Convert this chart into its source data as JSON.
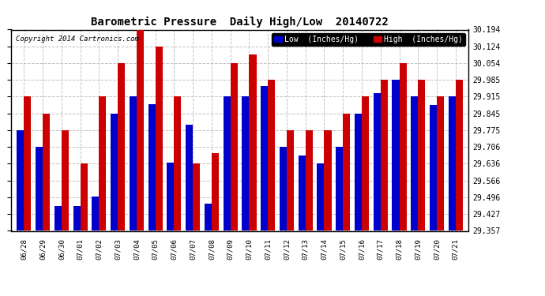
{
  "title": "Barometric Pressure  Daily High/Low  20140722",
  "copyright": "Copyright 2014 Cartronics.com",
  "ylabel_low": "Low  (Inches/Hg)",
  "ylabel_high": "High  (Inches/Hg)",
  "background_color": "#ffffff",
  "plot_bg_color": "#ffffff",
  "grid_color": "#bbbbbb",
  "low_color": "#0000cc",
  "high_color": "#cc0000",
  "dates": [
    "06/28",
    "06/29",
    "06/30",
    "07/01",
    "07/02",
    "07/03",
    "07/04",
    "07/05",
    "07/06",
    "07/07",
    "07/08",
    "07/09",
    "07/10",
    "07/11",
    "07/12",
    "07/13",
    "07/14",
    "07/15",
    "07/16",
    "07/17",
    "07/18",
    "07/19",
    "07/20",
    "07/21"
  ],
  "lows": [
    29.775,
    29.706,
    29.46,
    29.46,
    29.5,
    29.846,
    29.916,
    29.883,
    29.64,
    29.8,
    29.47,
    29.916,
    29.916,
    29.96,
    29.706,
    29.67,
    29.636,
    29.706,
    29.845,
    29.93,
    29.985,
    29.916,
    29.88,
    29.916
  ],
  "highs": [
    29.916,
    29.846,
    29.775,
    29.636,
    29.916,
    30.054,
    30.194,
    30.124,
    29.916,
    29.636,
    29.68,
    30.054,
    30.09,
    29.985,
    29.775,
    29.775,
    29.775,
    29.846,
    29.916,
    29.985,
    30.054,
    29.985,
    29.916,
    29.985
  ],
  "ylim": [
    29.357,
    30.194
  ],
  "yticks": [
    29.357,
    29.427,
    29.496,
    29.566,
    29.636,
    29.706,
    29.775,
    29.845,
    29.915,
    29.985,
    30.054,
    30.124,
    30.194
  ]
}
